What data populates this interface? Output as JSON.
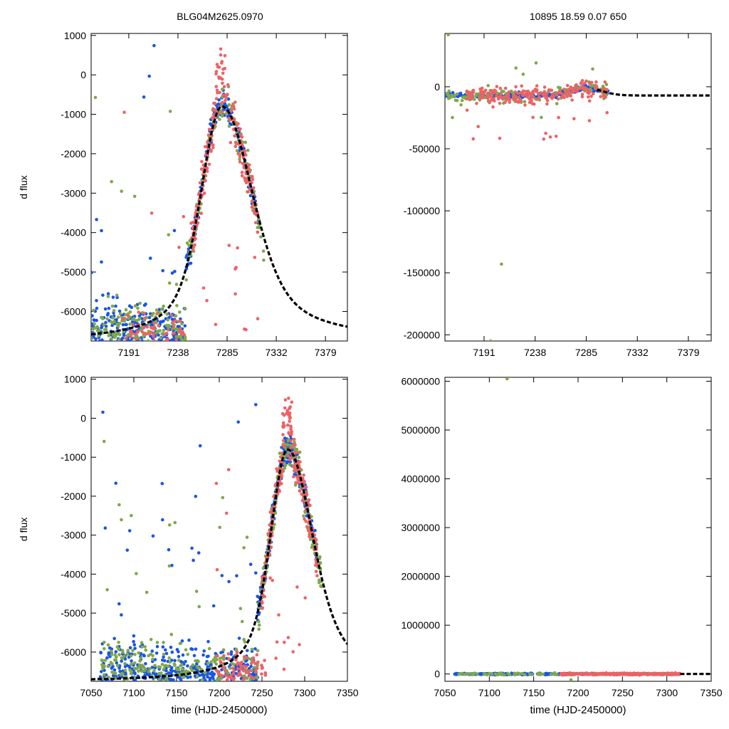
{
  "titles": {
    "left": "BLG04M2625.0970",
    "right": "10895  18.59  0.07  650"
  },
  "colors": {
    "blue": "#1a55e3",
    "green": "#7fa84a",
    "red": "#ec6266",
    "model": "#000000",
    "axis": "#000000"
  },
  "chart_data": [
    {
      "id": "top_left",
      "type": "scatter",
      "title": "BLG04M2625.0970",
      "xlabel": "",
      "ylabel": "d flux",
      "xlim": [
        7155,
        7400
      ],
      "ylim": [
        -6750,
        1050
      ],
      "xticks": [
        7191,
        7238,
        7285,
        7332,
        7379
      ],
      "xtick_labels": [
        "7191",
        "7238",
        "7285",
        "7332",
        "7379"
      ],
      "yticks": [
        1000,
        0,
        -1000,
        -2000,
        -3000,
        -4000,
        -5000,
        -6000
      ],
      "ytick_labels": [
        "1000",
        "0",
        "-1000",
        "-2000",
        "-3000",
        "-4000",
        "-5000",
        "-6000"
      ],
      "series": [
        {
          "name": "blue",
          "approx_points": 420
        },
        {
          "name": "green",
          "approx_points": 260
        },
        {
          "name": "red",
          "approx_points": 300
        },
        {
          "name": "model",
          "style": "dashed-line"
        }
      ],
      "model": {
        "t0": 7280,
        "peak": -800,
        "base": -6750,
        "t_rise": 26,
        "t_fall": 38
      }
    },
    {
      "id": "top_right",
      "type": "scatter",
      "title": "10895  18.59  0.07  650",
      "xlabel": "",
      "ylabel": "",
      "xlim": [
        7155,
        7400
      ],
      "ylim": [
        -205000,
        43000
      ],
      "xticks": [
        7191,
        7238,
        7285,
        7332,
        7379
      ],
      "xtick_labels": [
        "7191",
        "7238",
        "7285",
        "7332",
        "7379"
      ],
      "yticks": [
        0,
        -50000,
        -100000,
        -150000,
        -200000
      ],
      "ytick_labels": [
        "0",
        "-50000",
        "-100000",
        "-150000",
        "-200000"
      ],
      "series": [
        {
          "name": "blue",
          "approx_points": 260
        },
        {
          "name": "green",
          "approx_points": 130
        },
        {
          "name": "red",
          "approx_points": 220
        },
        {
          "name": "model",
          "style": "dashed-line"
        }
      ]
    },
    {
      "id": "bottom_left",
      "type": "scatter",
      "title": "",
      "xlabel": "time (HJD-2450000)",
      "ylabel": "d flux",
      "xlim": [
        7050,
        7350
      ],
      "ylim": [
        -6750,
        1050
      ],
      "xticks": [
        7050,
        7100,
        7150,
        7200,
        7250,
        7300,
        7350
      ],
      "xtick_labels": [
        "7050",
        "7100",
        "7150",
        "7200",
        "7250",
        "7300",
        "7350"
      ],
      "yticks": [
        1000,
        0,
        -1000,
        -2000,
        -3000,
        -4000,
        -5000,
        -6000
      ],
      "ytick_labels": [
        "1000",
        "0",
        "-1000",
        "-2000",
        "-3000",
        "-4000",
        "-5000",
        "-6000"
      ],
      "series": [
        {
          "name": "blue",
          "approx_points": 650
        },
        {
          "name": "green",
          "approx_points": 420
        },
        {
          "name": "red",
          "approx_points": 330
        },
        {
          "name": "model",
          "style": "dashed-line"
        }
      ],
      "model": {
        "t0": 7280,
        "peak": -800,
        "base": -6750,
        "t_rise": 26,
        "t_fall": 38
      }
    },
    {
      "id": "bottom_right",
      "type": "scatter",
      "title": "",
      "xlabel": "time (HJD-2450000)",
      "ylabel": "",
      "xlim": [
        7050,
        7350
      ],
      "ylim": [
        -150000,
        6080000
      ],
      "xticks": [
        7050,
        7100,
        7150,
        7200,
        7250,
        7300,
        7350
      ],
      "xtick_labels": [
        "7050",
        "7100",
        "7150",
        "7200",
        "7250",
        "7300",
        "7350"
      ],
      "yticks": [
        6000000,
        5000000,
        4000000,
        3000000,
        2000000,
        1000000,
        0
      ],
      "ytick_labels": [
        "6000000",
        "5000000",
        "4000000",
        "3000000",
        "2000000",
        "1000000",
        "0"
      ],
      "series": [
        {
          "name": "blue",
          "approx_points": 300
        },
        {
          "name": "green",
          "approx_points": 110
        },
        {
          "name": "red",
          "approx_points": 260
        },
        {
          "name": "model",
          "style": "dashed-line"
        }
      ]
    }
  ]
}
